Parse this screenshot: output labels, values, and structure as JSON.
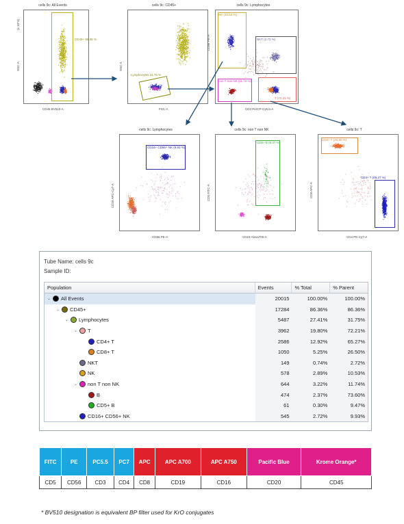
{
  "plots": [
    {
      "id": "p1",
      "title": "cells 9c: All Events",
      "xlabel": "CD45 BV510-A",
      "ylabel": "SSC-A",
      "yexp": "(x 10^4)",
      "gates": [
        {
          "label": "CD45+ 86.36 %",
          "color": "#b7b11c"
        }
      ]
    },
    {
      "id": "p2",
      "title": "cells 9c: CD45+",
      "xlabel": "FSC-A",
      "ylabel": "SSC-A",
      "yexp": "(x 10^4)",
      "xexp": "(x 10^4)",
      "gates": [
        {
          "label": "Lymphocytes 31.75 %",
          "color": "#8f8a10"
        }
      ]
    },
    {
      "id": "p3",
      "title": "cells 9c: Lymphocytes",
      "xlabel": "CD3 PerCP-Cy5.5-A",
      "ylabel": "CD56 PE-A",
      "gates": [
        {
          "label": "NK (10.53 %)",
          "color": "#c9b233"
        },
        {
          "label": "NKT (2.72 %)",
          "color": "#555"
        },
        {
          "label": "non T non NK (11.74 %)",
          "color": "#d23cc0"
        },
        {
          "label": "T (72.21 %)",
          "color": "#e06060"
        }
      ]
    },
    {
      "id": "p4",
      "title": "cells 9c: Lymphocytes",
      "xlabel": "CD56 PE-A",
      "ylabel": "CD16 APC-Cy7-A",
      "gates": [
        {
          "label": "CD16+ CD56+ NK (9.93 %)",
          "color": "#2c2ca8"
        }
      ]
    },
    {
      "id": "p5",
      "title": "cells 9c: non T non NK",
      "xlabel": "CD19 Alexa700-A",
      "ylabel": "CD5 FITC-A",
      "gates": [
        {
          "label": "CD5+ B (9.47 %)",
          "color": "#3cae3c"
        }
      ]
    },
    {
      "id": "p6",
      "title": "cells 9c: T",
      "xlabel": "CD4 PE-Cy7-A",
      "ylabel": "CD8 APC-A",
      "gates": [
        {
          "label": "CD8+ T (26.50 %)",
          "color": "#d98a3a"
        },
        {
          "label": "CD4+ T (65.27 %)",
          "color": "#2c2ca8"
        }
      ]
    }
  ],
  "panel": {
    "tube_name": "Tube Name:  cells 9c",
    "sample_id": "Sample ID:",
    "headers": {
      "population": "Population",
      "events": "Events",
      "total": "% Total",
      "parent": "% Parent"
    },
    "rows": [
      {
        "label": "All Events",
        "level": 0,
        "chev": "⌄",
        "color": "#000000",
        "events": "20015",
        "total": "100.00%",
        "parent": "100.00%"
      },
      {
        "label": "CD45+",
        "level": 1,
        "chev": "⌄",
        "color": "#7a6a10",
        "events": "17284",
        "total": "86.36%",
        "parent": "86.36%"
      },
      {
        "label": "Lymphocytes",
        "level": 2,
        "chev": "⌄",
        "color": "#8aa834",
        "events": "5487",
        "total": "27.41%",
        "parent": "31.75%"
      },
      {
        "label": "T",
        "level": 3,
        "chev": "⌄",
        "color": "#f0a0a0",
        "events": "3962",
        "total": "19.80%",
        "parent": "72.21%"
      },
      {
        "label": "CD4+ T",
        "level": 4,
        "chev": "",
        "color": "#2020c0",
        "events": "2586",
        "total": "12.92%",
        "parent": "65.27%"
      },
      {
        "label": "CD8+ T",
        "level": 4,
        "chev": "",
        "color": "#e08020",
        "events": "1050",
        "total": "5.25%",
        "parent": "26.50%"
      },
      {
        "label": "NKT",
        "level": 3,
        "chev": "",
        "color": "#6a6a8a",
        "events": "149",
        "total": "0.74%",
        "parent": "2.72%"
      },
      {
        "label": "NK",
        "level": 3,
        "chev": "",
        "color": "#d8a020",
        "events": "578",
        "total": "2.89%",
        "parent": "10.53%"
      },
      {
        "label": "non T non NK",
        "level": 3,
        "chev": "⌄",
        "color": "#e020c0",
        "events": "644",
        "total": "3.22%",
        "parent": "11.74%"
      },
      {
        "label": "B",
        "level": 4,
        "chev": "",
        "color": "#a01818",
        "events": "474",
        "total": "2.37%",
        "parent": "73.60%"
      },
      {
        "label": "CD5+ B",
        "level": 4,
        "chev": "",
        "color": "#20b020",
        "events": "61",
        "total": "0.30%",
        "parent": "9.47%"
      },
      {
        "label": "CD16+ CD56+ NK",
        "level": 3,
        "chev": "",
        "color": "#2020c0",
        "events": "545",
        "total": "2.72%",
        "parent": "9.93%"
      }
    ]
  },
  "filters": {
    "fluorochromes": [
      {
        "name": "FITC",
        "color": "#1aa7e0"
      },
      {
        "name": "PE",
        "color": "#1aa7e0"
      },
      {
        "name": "PC5.5",
        "color": "#1aa7e0"
      },
      {
        "name": "PC7",
        "color": "#1aa7e0"
      },
      {
        "name": "APC",
        "color": "#e0202a"
      },
      {
        "name": "APC A700",
        "color": "#e0202a"
      },
      {
        "name": "APC A750",
        "color": "#e0202a"
      },
      {
        "name": "Pacific Blue",
        "color": "#e0208a"
      },
      {
        "name": "Krome Orange*",
        "color": "#e0208a"
      }
    ],
    "markers": [
      "CD5",
      "CD56",
      "CD3",
      "CD4",
      "CD8",
      "CD19",
      "CD16",
      "CD20",
      "CD45"
    ]
  },
  "footnote": "* BV510 designation is equivalent BP filter used for KrO conjugates"
}
